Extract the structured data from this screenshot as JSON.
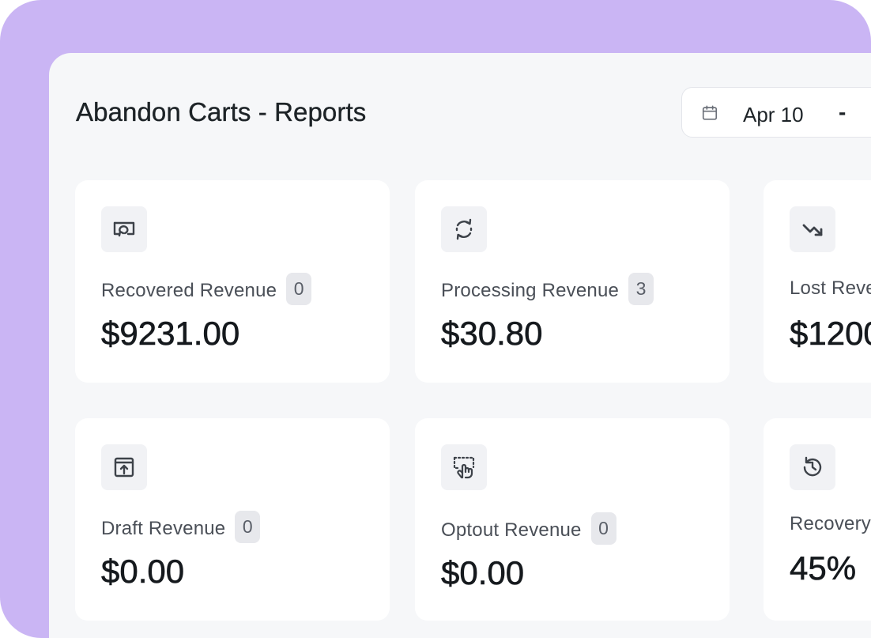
{
  "header": {
    "title": "Abandon Carts - Reports",
    "date_range": {
      "start": "Apr 10",
      "separator": "-",
      "icon": "calendar-icon"
    }
  },
  "colors": {
    "backdrop": "#cab5f4",
    "panel": "#f6f7f9",
    "card": "#ffffff",
    "icon": "#3d4249"
  },
  "cards": [
    {
      "label": "Recovered Revenue",
      "count": "0",
      "value": "$9231.00",
      "icon": "recovered-revenue-icon"
    },
    {
      "label": "Processing Revenue",
      "count": "3",
      "value": "$30.80",
      "icon": "refresh-cycle-icon"
    },
    {
      "label": "Lost Reve",
      "value": "$1200",
      "icon": "trending-down-icon"
    },
    {
      "label": "Draft Revenue",
      "count": "0",
      "value": "$0.00",
      "icon": "draft-upload-icon"
    },
    {
      "label": "Optout Revenue",
      "count": "0",
      "value": "$0.00",
      "icon": "optout-pointer-icon"
    },
    {
      "label": "Recovery",
      "value": "45%",
      "icon": "history-icon"
    }
  ]
}
